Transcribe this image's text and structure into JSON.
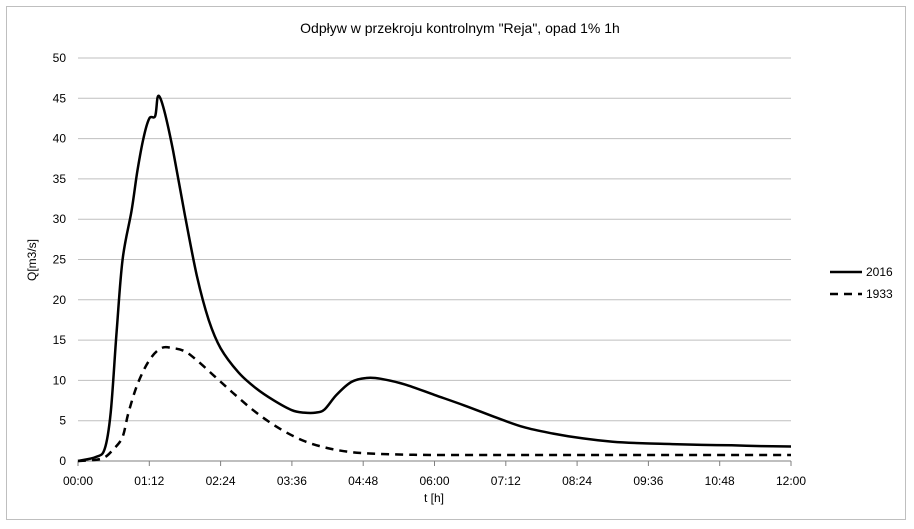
{
  "chart_data": {
    "type": "line",
    "title": "Odpływ w przekroju kontrolnym \"Reja\", opad 1% 1h",
    "xlabel": "t [h]",
    "ylabel": "Q[m3/s]",
    "ylim": [
      0,
      50
    ],
    "xlim_hours": [
      0,
      12
    ],
    "y_ticks": [
      "0",
      "5",
      "10",
      "15",
      "20",
      "25",
      "30",
      "35",
      "40",
      "45",
      "50"
    ],
    "x_tick_labels": [
      "00:00",
      "01:12",
      "02:24",
      "03:36",
      "04:48",
      "06:00",
      "07:12",
      "08:24",
      "09:36",
      "10:48",
      "12:00"
    ],
    "grid": "horizontal",
    "legend_position": "right",
    "series": [
      {
        "name": "2016",
        "style": "solid",
        "color": "#000000",
        "points": [
          [
            0.0,
            0.0
          ],
          [
            0.3,
            0.5
          ],
          [
            0.45,
            1.5
          ],
          [
            0.55,
            6.0
          ],
          [
            0.65,
            16.0
          ],
          [
            0.75,
            25.0
          ],
          [
            0.9,
            31.0
          ],
          [
            1.0,
            36.0
          ],
          [
            1.1,
            40.0
          ],
          [
            1.2,
            42.5
          ],
          [
            1.3,
            42.8
          ],
          [
            1.35,
            45.3
          ],
          [
            1.45,
            43.5
          ],
          [
            1.6,
            38.5
          ],
          [
            1.8,
            30.5
          ],
          [
            2.0,
            23.0
          ],
          [
            2.2,
            17.5
          ],
          [
            2.4,
            14.0
          ],
          [
            2.7,
            11.0
          ],
          [
            3.0,
            9.0
          ],
          [
            3.3,
            7.5
          ],
          [
            3.6,
            6.3
          ],
          [
            3.8,
            6.0
          ],
          [
            4.0,
            6.0
          ],
          [
            4.15,
            6.4
          ],
          [
            4.35,
            8.2
          ],
          [
            4.6,
            9.8
          ],
          [
            4.85,
            10.3
          ],
          [
            5.1,
            10.2
          ],
          [
            5.5,
            9.5
          ],
          [
            6.0,
            8.2
          ],
          [
            6.5,
            6.9
          ],
          [
            7.0,
            5.5
          ],
          [
            7.5,
            4.2
          ],
          [
            8.0,
            3.4
          ],
          [
            8.5,
            2.8
          ],
          [
            9.0,
            2.4
          ],
          [
            9.5,
            2.2
          ],
          [
            10.0,
            2.1
          ],
          [
            10.5,
            2.0
          ],
          [
            11.0,
            1.95
          ],
          [
            11.5,
            1.85
          ],
          [
            12.0,
            1.8
          ]
        ]
      },
      {
        "name": "1933",
        "style": "dashed",
        "color": "#000000",
        "points": [
          [
            0.0,
            0.0
          ],
          [
            0.4,
            0.3
          ],
          [
            0.6,
            1.5
          ],
          [
            0.75,
            3.0
          ],
          [
            0.85,
            6.0
          ],
          [
            1.0,
            9.5
          ],
          [
            1.2,
            12.5
          ],
          [
            1.4,
            14.0
          ],
          [
            1.6,
            14.0
          ],
          [
            1.8,
            13.6
          ],
          [
            2.0,
            12.5
          ],
          [
            2.3,
            10.5
          ],
          [
            2.6,
            8.5
          ],
          [
            3.0,
            6.0
          ],
          [
            3.4,
            4.0
          ],
          [
            3.8,
            2.5
          ],
          [
            4.2,
            1.6
          ],
          [
            4.6,
            1.1
          ],
          [
            5.0,
            0.9
          ],
          [
            5.5,
            0.8
          ],
          [
            6.0,
            0.75
          ],
          [
            7.0,
            0.75
          ],
          [
            8.0,
            0.75
          ],
          [
            9.0,
            0.75
          ],
          [
            10.0,
            0.75
          ],
          [
            11.0,
            0.75
          ],
          [
            12.0,
            0.75
          ]
        ]
      }
    ]
  }
}
